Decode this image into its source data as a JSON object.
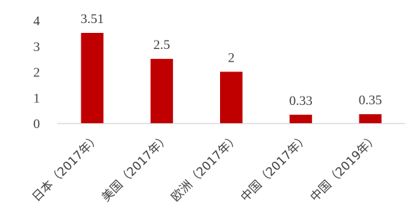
{
  "chart_data": {
    "type": "bar",
    "categories": [
      "日本（2017年）",
      "美国（2017年）",
      "欧洲（2017年）",
      "中国（2017年）",
      "中国（2019年）"
    ],
    "values": [
      3.51,
      2.5,
      2,
      0.33,
      0.35
    ],
    "data_labels": [
      "3.51",
      "2.5",
      "2",
      "0.33",
      "0.35"
    ],
    "y_ticks": [
      "0",
      "1",
      "2",
      "3",
      "4"
    ],
    "ylim": [
      0,
      4
    ],
    "title": "",
    "xlabel": "",
    "ylabel": "",
    "grid": false,
    "legend": "none",
    "bar_color": "#c00000",
    "axis_color": "#d9d9d9"
  }
}
